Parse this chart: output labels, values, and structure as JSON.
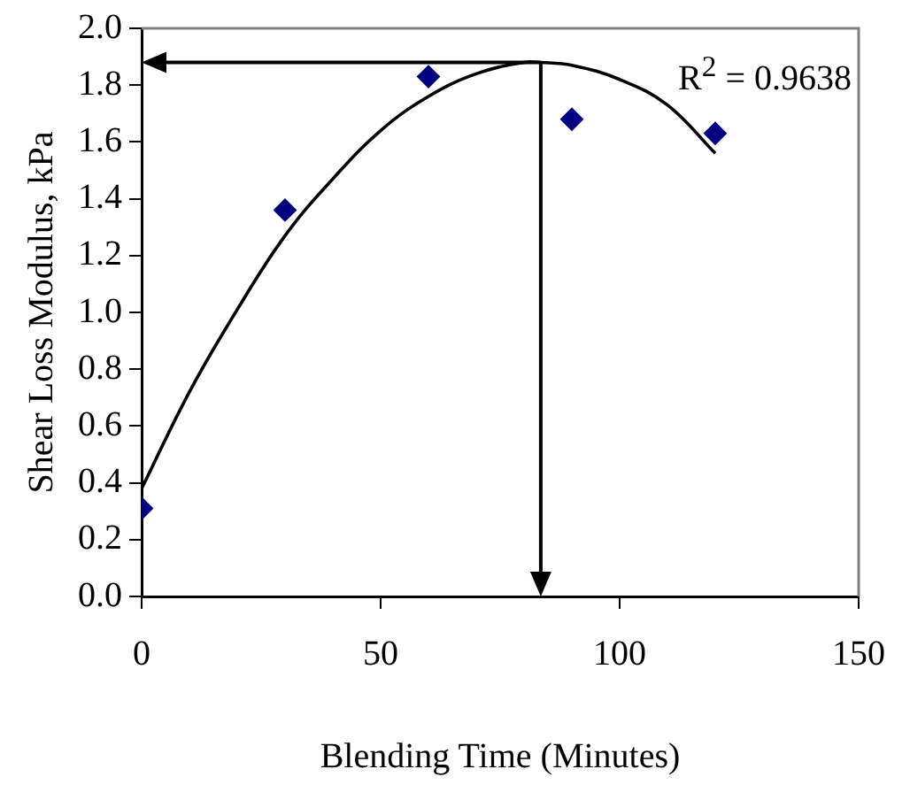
{
  "chart_data": {
    "type": "scatter",
    "xlabel": "Blending Time (Minutes)",
    "ylabel": "Shear Loss Modulus, kPa",
    "series": [
      {
        "color": "#000080",
        "marker": "diamond",
        "x": [
          0,
          30,
          60,
          90,
          120
        ],
        "values": [
          0.31,
          1.36,
          1.83,
          1.68,
          1.63
        ]
      },
      {
        "type": "line",
        "color": "#000000",
        "marker": "none",
        "x": [
          0,
          10,
          20,
          30,
          40,
          50,
          60,
          70,
          80,
          83.5,
          90,
          100,
          110,
          120
        ],
        "values": [
          0.38,
          0.72,
          1.01,
          1.27,
          1.47,
          1.64,
          1.76,
          1.84,
          1.88,
          1.88,
          1.87,
          1.82,
          1.73,
          1.56
        ]
      }
    ],
    "annotations": [
      "R$^{2}$ = 0.9638"
    ],
    "ref_lines": [
      {
        "axis": "x",
        "value": 83.5
      },
      {
        "axis": "y",
        "value": 1.88
      }
    ],
    "xlim": [
      0,
      150
    ],
    "xticks": [
      0,
      50,
      100,
      150
    ],
    "ylim": [
      0,
      2
    ],
    "yticks": [
      {
        "value": 0,
        "label": "0.0"
      },
      {
        "value": 0.2,
        "label": "0.2"
      },
      {
        "value": 0.4,
        "label": "0.4"
      },
      {
        "value": 0.6,
        "label": "0.6"
      },
      {
        "value": 0.8,
        "label": "0.8"
      },
      {
        "value": 1,
        "label": "1.0"
      },
      {
        "value": 1.2,
        "label": "1.2"
      },
      {
        "value": 1.4,
        "label": "1.4"
      },
      {
        "value": 1.6,
        "label": "1.6"
      },
      {
        "value": 1.8,
        "label": "1.8"
      },
      {
        "value": 2,
        "label": "2.0"
      }
    ],
    "grid": false,
    "legend": false
  }
}
